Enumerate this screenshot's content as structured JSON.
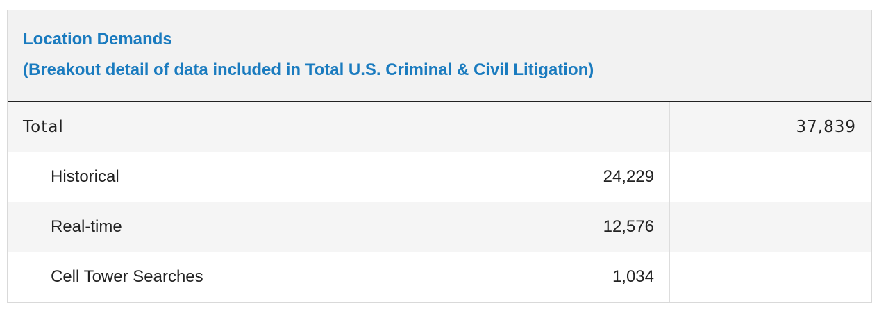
{
  "header": {
    "title": "Location Demands",
    "subtitle": "(Breakout detail of data included in Total U.S. Criminal & Civil Litigation)"
  },
  "table": {
    "total": {
      "label": "Total",
      "value": "37,839"
    },
    "rows": [
      {
        "label": "Historical",
        "value": "24,229"
      },
      {
        "label": "Real-time",
        "value": "12,576"
      },
      {
        "label": "Cell Tower Searches",
        "value": "1,034"
      }
    ]
  }
}
